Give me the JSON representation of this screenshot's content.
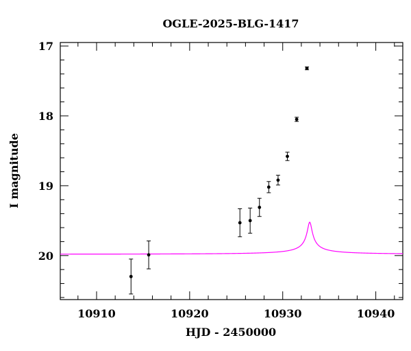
{
  "chart_data": {
    "type": "scatter",
    "title": "OGLE-2025-BLG-1417",
    "xlabel": "HJD - 2450000",
    "ylabel": "I magnitude",
    "xlim": [
      10906.1,
      10942.9
    ],
    "ylim": [
      20.63,
      16.95
    ],
    "y_inverted": true,
    "x_ticks": [
      10910,
      10920,
      10930,
      10940
    ],
    "y_ticks": [
      17,
      18,
      19,
      20
    ],
    "grid": false,
    "colors": {
      "model": "#ff00ff",
      "points": "#000000",
      "axes": "#000000"
    },
    "series": [
      {
        "kind": "points",
        "x": [
          10913.7,
          10915.6,
          10925.4,
          10926.5,
          10927.5,
          10928.5,
          10929.5,
          10930.5,
          10931.5,
          10932.6
        ],
        "y": [
          20.3,
          19.99,
          19.53,
          19.5,
          19.31,
          19.02,
          18.92,
          18.58,
          18.05,
          17.32
        ],
        "yerr": [
          0.25,
          0.2,
          0.2,
          0.18,
          0.13,
          0.08,
          0.07,
          0.06,
          0.03,
          0.02
        ]
      },
      {
        "kind": "model",
        "model": "pspl",
        "t0": 10932.9,
        "u0": 0.015,
        "tE": 16.0,
        "fs": 0.008,
        "base_mag": 19.98
      }
    ]
  }
}
